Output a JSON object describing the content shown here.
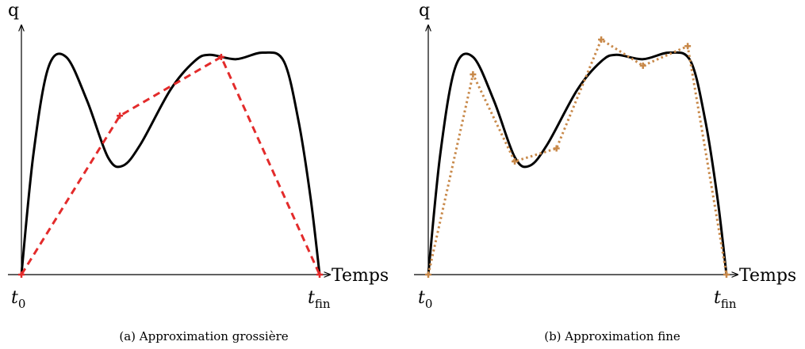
{
  "panels": [
    {
      "id": "a",
      "y_axis_label": "q",
      "x_axis_label": "Temps",
      "t_start": {
        "main": "t",
        "sub": "0"
      },
      "t_end": {
        "main": "t",
        "sub": "fin"
      },
      "caption": "(a) Approximation grossière",
      "approx_style": "dashed",
      "approx_color": "#e32b2b",
      "approx_points": [
        [
          0,
          0
        ],
        [
          0.33,
          0.73
        ],
        [
          0.67,
          1.0
        ],
        [
          1.0,
          0
        ]
      ]
    },
    {
      "id": "b",
      "y_axis_label": "q",
      "x_axis_label": "Temps",
      "t_start": {
        "main": "t",
        "sub": "0"
      },
      "t_end": {
        "main": "t",
        "sub": "fin"
      },
      "caption": "(b) Approximation fine",
      "approx_style": "dotted",
      "approx_color": "#c8894a",
      "approx_points": [
        [
          0,
          0
        ],
        [
          0.15,
          0.92
        ],
        [
          0.29,
          0.52
        ],
        [
          0.43,
          0.58
        ],
        [
          0.58,
          1.08
        ],
        [
          0.72,
          0.96
        ],
        [
          0.87,
          1.05
        ],
        [
          1.0,
          0
        ]
      ]
    }
  ],
  "curve_color": "#000000",
  "curve_samples": [
    [
      0,
      0
    ],
    [
      0.04,
      0.55
    ],
    [
      0.09,
      0.95
    ],
    [
      0.15,
      1.0
    ],
    [
      0.22,
      0.8
    ],
    [
      0.29,
      0.54
    ],
    [
      0.34,
      0.5
    ],
    [
      0.4,
      0.6
    ],
    [
      0.5,
      0.85
    ],
    [
      0.58,
      0.98
    ],
    [
      0.63,
      1.01
    ],
    [
      0.72,
      0.99
    ],
    [
      0.81,
      1.02
    ],
    [
      0.88,
      0.98
    ],
    [
      0.93,
      0.7
    ],
    [
      0.97,
      0.35
    ],
    [
      1.0,
      0
    ]
  ]
}
